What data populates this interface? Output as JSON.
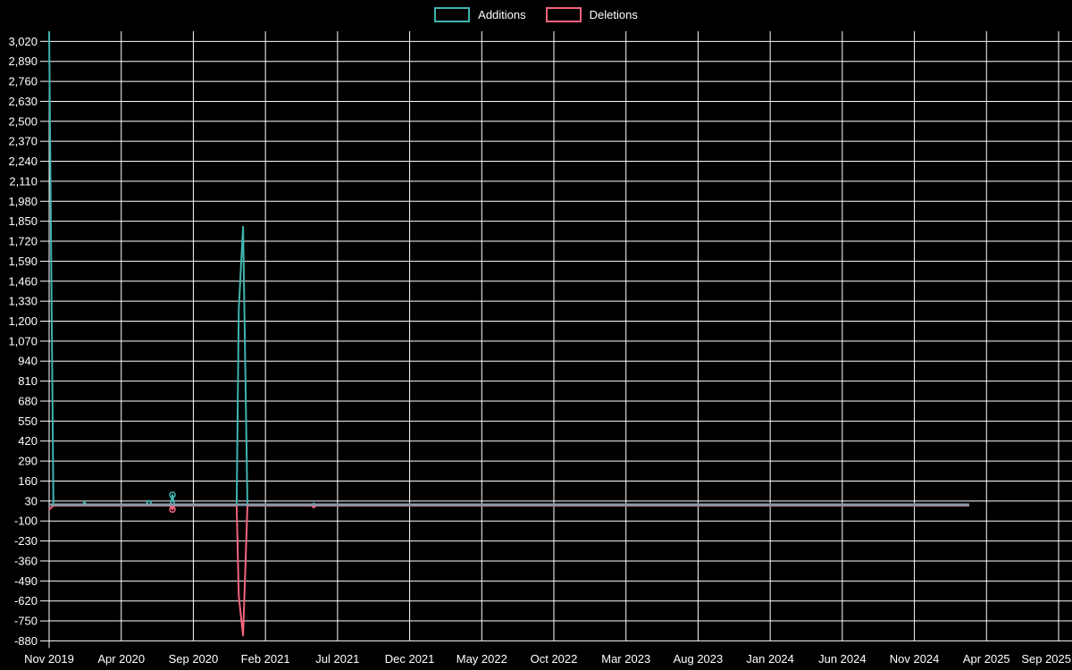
{
  "legend": {
    "items": [
      {
        "label": "Additions",
        "color": "#40b5ad"
      },
      {
        "label": "Deletions",
        "color": "#f4657d"
      }
    ]
  },
  "chart_data": {
    "type": "line",
    "title": "",
    "xlabel": "",
    "ylabel": "",
    "background_color": "#000000",
    "gridline_color": "#ffffff",
    "text_color": "#ffffff",
    "zero_axis_color": "#8298a8",
    "grid": true,
    "legend_position": "top-center",
    "x_axis": {
      "unit": "months since first tick",
      "tick_labels": [
        "Nov 2019",
        "Apr 2020",
        "Sep 2020",
        "Feb 2021",
        "Jul 2021",
        "Dec 2021",
        "May 2022",
        "Oct 2022",
        "Mar 2023",
        "Aug 2023",
        "Jan 2024",
        "Jun 2024",
        "Nov 2024",
        "Apr 2025",
        "Sep 2025"
      ],
      "months_per_tick": 5,
      "total_months": 70
    },
    "y_axis": {
      "tick_max": 3020,
      "tick_min": -880,
      "tick_step": 130,
      "tick_labels": [
        "3,020",
        "2,890",
        "2,760",
        "2,630",
        "2,500",
        "2,370",
        "2,240",
        "2,110",
        "1,980",
        "1,850",
        "1,720",
        "1,590",
        "1,460",
        "1,330",
        "1,200",
        "1,070",
        "940",
        "810",
        "680",
        "550",
        "420",
        "290",
        "160",
        "30",
        "-100",
        "-230",
        "-360",
        "-490",
        "-620",
        "-750",
        "-880"
      ]
    },
    "data_end_month": 63.8,
    "series": [
      {
        "name": "Additions",
        "color": "#40b5ad",
        "points": [
          [
            0,
            3085
          ],
          [
            0.3,
            0
          ],
          [
            2.3,
            0
          ],
          [
            2.45,
            25
          ],
          [
            2.6,
            0
          ],
          [
            6.7,
            0
          ],
          [
            6.85,
            30
          ],
          [
            7.0,
            30
          ],
          [
            7.15,
            0
          ],
          [
            8.4,
            0
          ],
          [
            8.55,
            70
          ],
          [
            8.7,
            0
          ],
          [
            13.0,
            0
          ],
          [
            13.15,
            1280
          ],
          [
            13.45,
            1815
          ],
          [
            13.75,
            0
          ],
          [
            18.2,
            0
          ],
          [
            18.35,
            15
          ],
          [
            18.5,
            0
          ],
          [
            63.8,
            0
          ]
        ]
      },
      {
        "name": "Deletions",
        "color": "#f4657d",
        "points": [
          [
            0,
            -25
          ],
          [
            0.3,
            0
          ],
          [
            8.4,
            0
          ],
          [
            8.55,
            -25
          ],
          [
            8.7,
            0
          ],
          [
            13.0,
            0
          ],
          [
            13.15,
            -590
          ],
          [
            13.45,
            -845
          ],
          [
            13.75,
            0
          ],
          [
            18.2,
            0
          ],
          [
            18.35,
            -12
          ],
          [
            18.5,
            0
          ],
          [
            63.8,
            0
          ]
        ]
      }
    ],
    "markers": [
      {
        "series": "Additions",
        "m": 8.55,
        "v": 70
      },
      {
        "series": "Deletions",
        "m": 8.55,
        "v": -25
      }
    ]
  }
}
